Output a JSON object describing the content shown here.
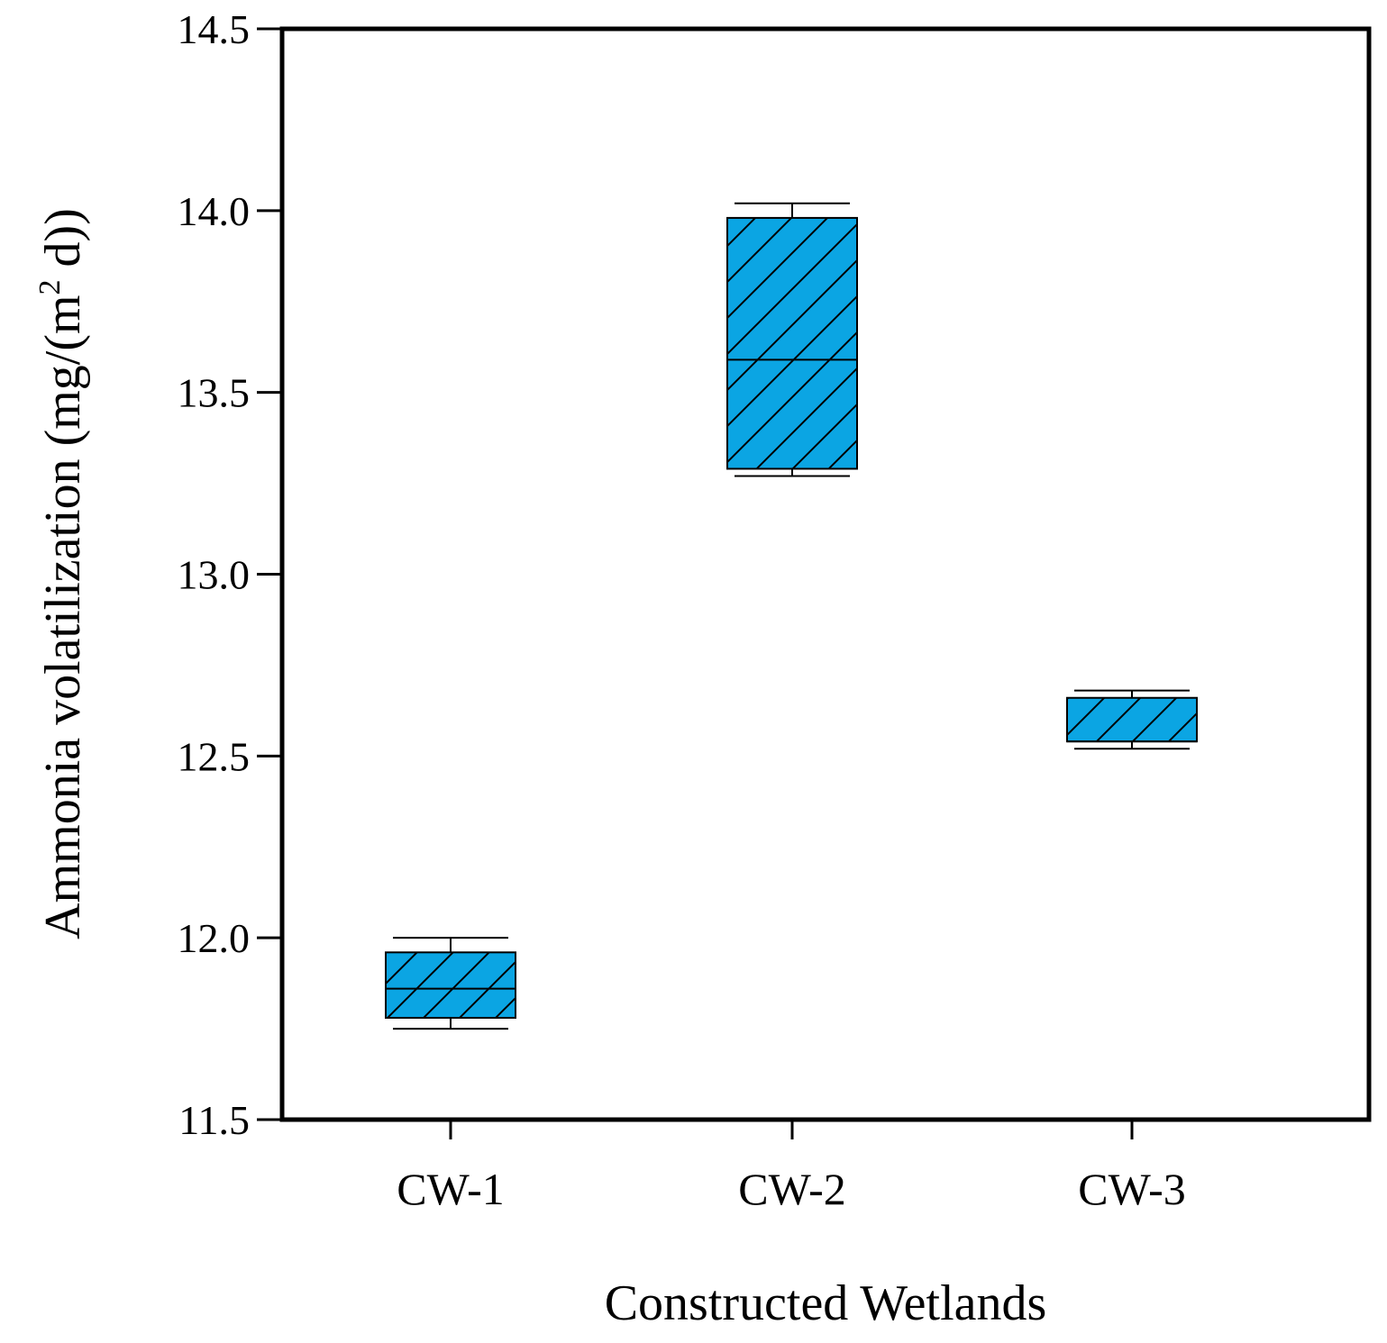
{
  "chart_data": {
    "type": "box",
    "title": "",
    "xlabel": "Constructed Wetlands",
    "ylabel": {
      "prefix": "Ammonia volatilization (mg/(m",
      "superscript": "2",
      "suffix": " d))"
    },
    "ylim": [
      11.5,
      14.5
    ],
    "yticks": [
      "11.5",
      "12.0",
      "12.5",
      "13.0",
      "13.5",
      "14.0",
      "14.5"
    ],
    "grid": false,
    "categories": [
      "CW-1",
      "CW-2",
      "CW-3"
    ],
    "boxes": [
      {
        "category": "CW-1",
        "whisker_low": 11.75,
        "q1": 11.78,
        "median": 11.86,
        "q3": 11.96,
        "whisker_high": 12.0
      },
      {
        "category": "CW-2",
        "whisker_low": 13.27,
        "q1": 13.29,
        "median": 13.59,
        "q3": 13.98,
        "whisker_high": 14.02
      },
      {
        "category": "CW-3",
        "whisker_low": 12.52,
        "q1": 12.54,
        "median": 12.54,
        "q3": 12.66,
        "whisker_high": 12.68
      }
    ],
    "box_fill": "#0ba5e3",
    "hatch": "diagonal",
    "line_color": "#000000"
  }
}
